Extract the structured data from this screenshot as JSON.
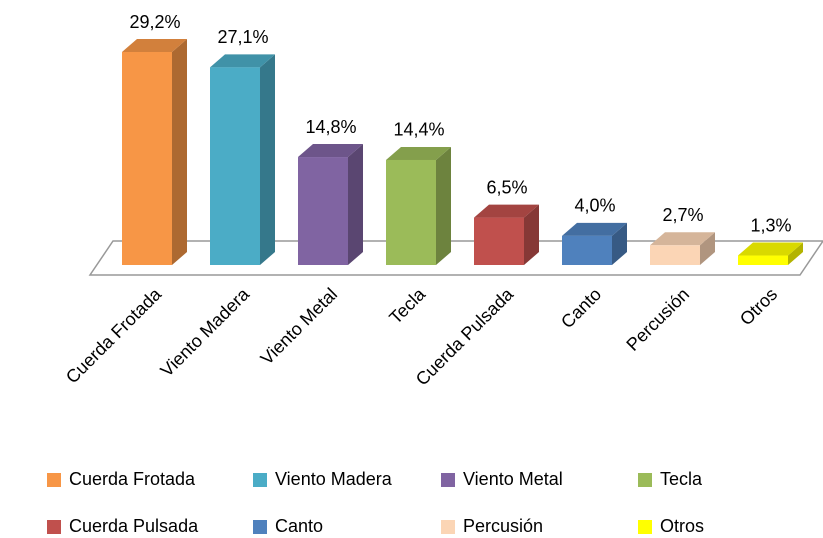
{
  "chart_data": {
    "type": "bar3d",
    "categories": [
      "Cuerda Frotada",
      "Viento Madera",
      "Viento Metal",
      "Tecla",
      "Cuerda Pulsada",
      "Canto",
      "Percusión",
      "Otros"
    ],
    "values": [
      29.2,
      27.1,
      14.8,
      14.4,
      6.5,
      4.0,
      2.7,
      1.3
    ],
    "value_labels": [
      "29,2%",
      "27,1%",
      "14,8%",
      "14,4%",
      "6,5%",
      "4,0%",
      "2,7%",
      "1,3%"
    ],
    "colors": [
      "#f79646",
      "#4bacc6",
      "#8064a2",
      "#9bbb59",
      "#c0504d",
      "#4f81bd",
      "#fbd5b5",
      "#ffff00"
    ],
    "legend": "bottom"
  }
}
